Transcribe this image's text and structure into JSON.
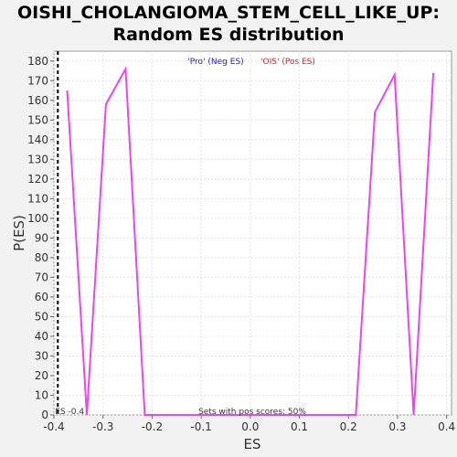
{
  "title_line1": "OISHI_CHOLANGIOMA_STEM_CELL_LIKE_UP:",
  "title_line2": "Random ES distribution",
  "chart_data": {
    "type": "line",
    "xlabel": "ES",
    "ylabel": "P(ES)",
    "xlim": [
      -0.4,
      0.41
    ],
    "ylim": [
      0,
      185
    ],
    "xticks": [
      -0.4,
      -0.3,
      -0.2,
      -0.1,
      0.0,
      0.1,
      0.2,
      0.3,
      0.4
    ],
    "xtick_labels": [
      "-0.4",
      "-0.3",
      "-0.2",
      "-0.1",
      "0.0",
      "0.1",
      "0.2",
      "0.3",
      "0.4"
    ],
    "yticks": [
      0,
      10,
      20,
      30,
      40,
      50,
      60,
      70,
      80,
      90,
      100,
      110,
      120,
      130,
      140,
      150,
      160,
      170,
      180
    ],
    "ytick_labels": [
      "0",
      "10",
      "20",
      "30",
      "40",
      "50",
      "60",
      "70",
      "80",
      "90",
      "100",
      "110",
      "120",
      "130",
      "140",
      "150",
      "160",
      "170",
      "180"
    ],
    "grid": true,
    "series": [
      {
        "color": "#ee44ee",
        "x": [
          -0.373,
          -0.333,
          -0.294,
          -0.254,
          -0.215,
          0.215,
          0.254,
          0.294,
          0.333,
          0.373
        ],
        "y": [
          165,
          0,
          158,
          176,
          0,
          0,
          154,
          173,
          0,
          174
        ]
      }
    ],
    "marker_line": {
      "x": -0.392,
      "label": "ES -0.4"
    },
    "legend": [
      {
        "text": "'Pro' (Neg ES)",
        "color": "#2222bb"
      },
      {
        "text": "'OIS' (Pos ES)",
        "color": "#dd2222"
      }
    ],
    "annotation": "Sets with pos scores: 50%"
  }
}
